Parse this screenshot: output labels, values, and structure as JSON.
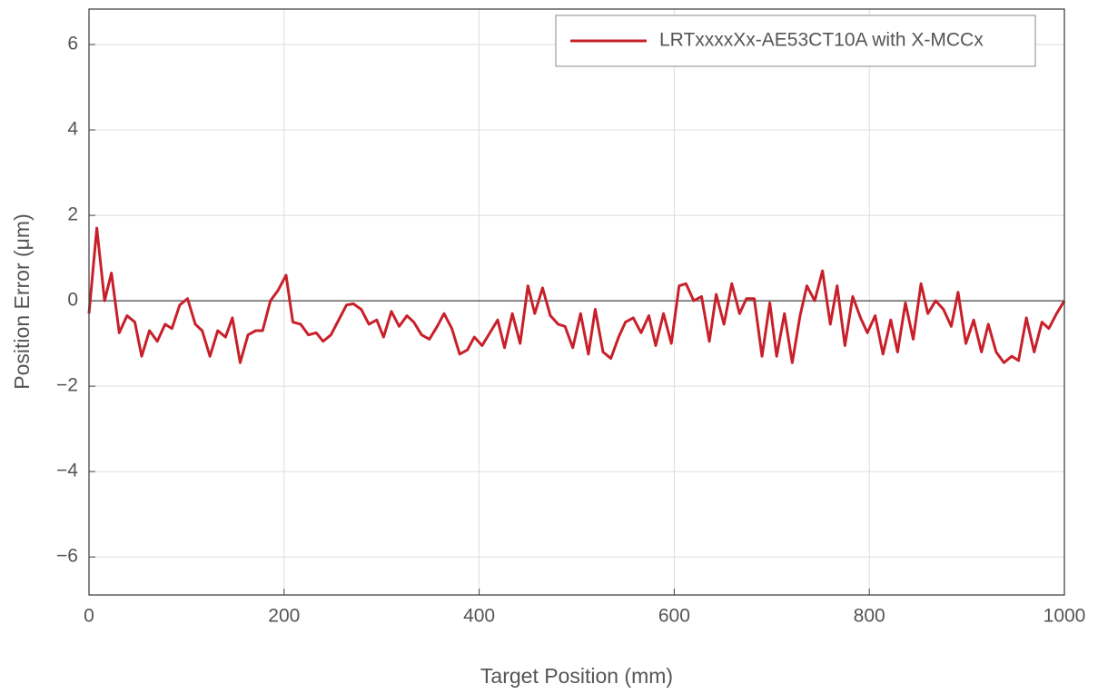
{
  "chart_data": {
    "type": "line",
    "x_label": "Target Position (mm)",
    "y_label": "Position Error (μm)",
    "x": [
      0,
      8,
      16,
      23,
      31,
      39,
      47,
      54,
      62,
      70,
      78,
      85,
      93,
      101,
      109,
      116,
      124,
      132,
      140,
      147,
      155,
      163,
      171,
      178,
      186,
      194,
      202,
      209,
      217,
      225,
      233,
      240,
      248,
      256,
      264,
      271,
      279,
      287,
      295,
      302,
      310,
      318,
      326,
      333,
      341,
      349,
      357,
      364,
      372,
      380,
      388,
      395,
      403,
      411,
      419,
      426,
      434,
      442,
      450,
      457,
      465,
      473,
      481,
      488,
      496,
      504,
      512,
      519,
      527,
      535,
      543,
      550,
      558,
      566,
      574,
      581,
      589,
      597,
      605,
      612,
      620,
      628,
      636,
      643,
      651,
      659,
      667,
      674,
      682,
      690,
      698,
      705,
      713,
      721,
      729,
      736,
      744,
      752,
      760,
      767,
      775,
      783,
      791,
      798,
      806,
      814,
      822,
      829,
      837,
      845,
      853,
      860,
      868,
      876,
      884,
      891,
      899,
      907,
      915,
      922,
      930,
      938,
      946,
      953,
      961,
      969,
      977,
      984,
      992,
      1000
    ],
    "series": [
      {
        "name": "LRTxxxxXx-AE53CT10A with X-MCCx",
        "color": "#c8202a",
        "values": [
          -0.3,
          1.7,
          0.0,
          0.65,
          -0.75,
          -0.35,
          -0.5,
          -1.3,
          -0.7,
          -0.95,
          -0.55,
          -0.65,
          -0.1,
          0.05,
          -0.55,
          -0.7,
          -1.3,
          -0.7,
          -0.85,
          -0.4,
          -1.45,
          -0.8,
          -0.7,
          -0.7,
          0.0,
          0.25,
          0.6,
          -0.5,
          -0.55,
          -0.8,
          -0.75,
          -0.95,
          -0.8,
          -0.45,
          -0.1,
          -0.07,
          -0.2,
          -0.55,
          -0.45,
          -0.85,
          -0.25,
          -0.6,
          -0.35,
          -0.5,
          -0.8,
          -0.9,
          -0.6,
          -0.3,
          -0.65,
          -1.25,
          -1.15,
          -0.85,
          -1.05,
          -0.75,
          -0.45,
          -1.1,
          -0.3,
          -1.0,
          0.35,
          -0.3,
          0.3,
          -0.35,
          -0.55,
          -0.6,
          -1.1,
          -0.3,
          -1.25,
          -0.2,
          -1.2,
          -1.35,
          -0.85,
          -0.5,
          -0.4,
          -0.75,
          -0.35,
          -1.05,
          -0.3,
          -1.0,
          0.35,
          0.4,
          0.0,
          0.1,
          -0.95,
          0.15,
          -0.55,
          0.4,
          -0.3,
          0.05,
          0.05,
          -1.3,
          -0.05,
          -1.3,
          -0.3,
          -1.45,
          -0.35,
          0.35,
          0.0,
          0.7,
          -0.55,
          0.35,
          -1.05,
          0.1,
          -0.4,
          -0.75,
          -0.35,
          -1.25,
          -0.45,
          -1.2,
          -0.05,
          -0.9,
          0.4,
          -0.3,
          0.0,
          -0.2,
          -0.6,
          0.2,
          -1.0,
          -0.45,
          -1.2,
          -0.55,
          -1.2,
          -1.45,
          -1.3,
          -1.4,
          -0.4,
          -1.2,
          -0.5,
          -0.65,
          -0.3,
          0.0
        ]
      }
    ],
    "xlim": [
      0,
      1000
    ],
    "ylim": [
      -6.89,
      6.83
    ],
    "xticks": [
      0,
      200,
      400,
      600,
      800,
      1000
    ],
    "yticks": [
      {
        "value": -6,
        "label": "−6"
      },
      {
        "value": -4,
        "label": "−4"
      },
      {
        "value": -2,
        "label": "−2"
      },
      0,
      2,
      4,
      6
    ],
    "grid": true,
    "zero_line": true,
    "legend": "upper right"
  }
}
